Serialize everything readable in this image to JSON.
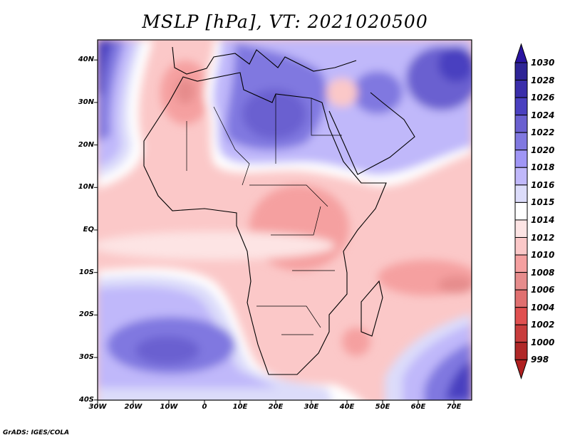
{
  "title": "MSLP [hPa], VT: 2021020500",
  "footer": "GrADS: IGES/COLA",
  "map": {
    "lat_labels": [
      "40N",
      "30N",
      "20N",
      "10N",
      "EQ",
      "10S",
      "20S",
      "30S",
      "40S"
    ],
    "lat_values": [
      40,
      30,
      20,
      10,
      0,
      -10,
      -20,
      -30,
      -40
    ],
    "lon_labels": [
      "30W",
      "20W",
      "10W",
      "0",
      "10E",
      "20E",
      "30E",
      "40E",
      "50E",
      "60E",
      "70E"
    ],
    "lon_values": [
      -30,
      -20,
      -10,
      0,
      10,
      20,
      30,
      40,
      50,
      60,
      70
    ],
    "extent": {
      "lon": [
        -30,
        75
      ],
      "lat": [
        -40,
        45
      ]
    }
  },
  "colorbar": {
    "labels": [
      "1030",
      "1028",
      "1026",
      "1024",
      "1022",
      "1020",
      "1018",
      "1016",
      "1015",
      "1014",
      "1012",
      "1010",
      "1008",
      "1006",
      "1004",
      "1002",
      "1000",
      "998"
    ],
    "colors": [
      "#2e2496",
      "#3a2eaa",
      "#4a40c0",
      "#6a60d0",
      "#8078e0",
      "#a096f5",
      "#c0b8fa",
      "#dcdcfa",
      "#ffffff",
      "#fde4e4",
      "#fbc8c8",
      "#f5a0a0",
      "#e68c8c",
      "#e07070",
      "#e05050",
      "#c83c3c",
      "#b02828"
    ],
    "top_color": "#2a14a0",
    "bottom_color": "#b02020"
  }
}
